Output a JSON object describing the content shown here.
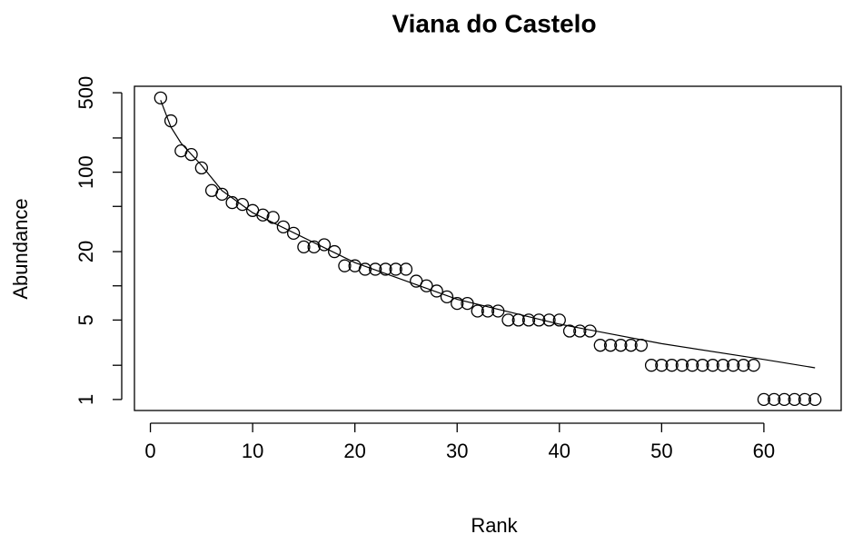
{
  "chart_data": {
    "type": "scatter",
    "title": "Viana do Castelo",
    "x_label": "Rank",
    "y_label": "Abundance",
    "x": [
      1,
      2,
      3,
      4,
      5,
      6,
      7,
      8,
      9,
      10,
      11,
      12,
      13,
      14,
      15,
      16,
      17,
      18,
      19,
      20,
      21,
      22,
      23,
      24,
      25,
      26,
      27,
      28,
      29,
      30,
      31,
      32,
      33,
      34,
      35,
      36,
      37,
      38,
      39,
      40,
      41,
      42,
      43,
      44,
      45,
      46,
      47,
      48,
      49,
      50,
      51,
      52,
      53,
      54,
      55,
      56,
      57,
      58,
      59,
      60,
      61,
      62,
      63,
      64,
      65
    ],
    "values": [
      450,
      283,
      154,
      143,
      109,
      69,
      64,
      54,
      52,
      46,
      42,
      40,
      33,
      29,
      22,
      22,
      23,
      20,
      15,
      15,
      14,
      14,
      14,
      14,
      14,
      11,
      10,
      9,
      8,
      7,
      7,
      6,
      6,
      6,
      5,
      5,
      5,
      5,
      5,
      5,
      4,
      4,
      4,
      3,
      3,
      3,
      3,
      3,
      2,
      2,
      2,
      2,
      2,
      2,
      2,
      2,
      2,
      2,
      2,
      1,
      1,
      1,
      1,
      1,
      1
    ],
    "fit": {
      "x": [
        1,
        2,
        3,
        5,
        7,
        10,
        20,
        30,
        40,
        50,
        60,
        65
      ],
      "values": [
        430,
        250,
        180,
        115,
        69,
        44,
        16,
        7.6,
        4.6,
        3.1,
        2.25,
        1.9
      ]
    },
    "color": "#000000",
    "log_y": true,
    "xlim": [
      -1.56,
      67.56
    ],
    "xticks": [
      0,
      10,
      20,
      30,
      40,
      50,
      60
    ],
    "ylim": [
      0.8,
      570
    ],
    "yticks": [
      1,
      5,
      20,
      100,
      500
    ],
    "yminor_ticks": [
      2,
      10,
      50,
      200
    ]
  }
}
